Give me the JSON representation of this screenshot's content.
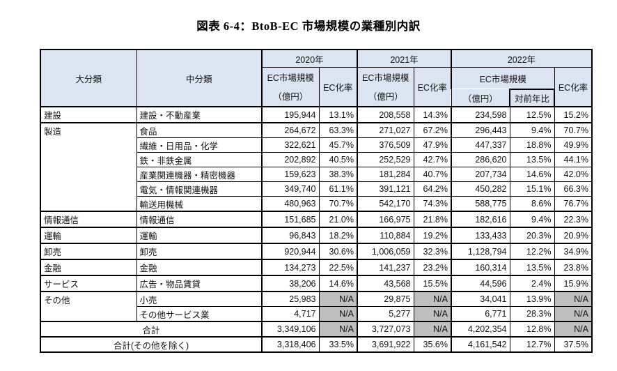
{
  "title": "図表 6-4：BtoB-EC 市場規模の業種別内訳",
  "colors": {
    "header_bg": "#dbe5f1",
    "na_bg": "#bfbfbf",
    "border": "#000000",
    "page_bg": "#ffffff"
  },
  "table": {
    "headers": {
      "major": "大分類",
      "middle": "中分類",
      "year_2020": "2020年",
      "year_2021": "2021年",
      "year_2022": "2022年",
      "ec_size": "EC市場規模",
      "unit": "（億円）",
      "ec_rate": "EC化率",
      "yoy": "対前年比"
    },
    "na_label": "N/A",
    "rows": [
      {
        "major": "建設",
        "rowspan": 1,
        "middle": "建設・不動産業",
        "v20": "195,944",
        "r20": "13.1%",
        "v21": "208,558",
        "r21": "14.3%",
        "v22": "234,598",
        "yoy": "12.5%",
        "r22": "15.2%"
      },
      {
        "major": "製造",
        "rowspan": 6,
        "middle": "食品",
        "v20": "264,672",
        "r20": "63.3%",
        "v21": "271,027",
        "r21": "67.2%",
        "v22": "296,443",
        "yoy": "9.4%",
        "r22": "70.7%"
      },
      {
        "middle": "繊維・日用品・化学",
        "v20": "322,621",
        "r20": "45.7%",
        "v21": "376,509",
        "r21": "47.9%",
        "v22": "447,337",
        "yoy": "18.8%",
        "r22": "49.9%"
      },
      {
        "middle": "鉄・非鉄金属",
        "v20": "202,892",
        "r20": "40.5%",
        "v21": "252,529",
        "r21": "42.7%",
        "v22": "286,620",
        "yoy": "13.5%",
        "r22": "44.1%"
      },
      {
        "middle": "産業関連機器・精密機器",
        "v20": "159,623",
        "r20": "38.3%",
        "v21": "181,284",
        "r21": "40.7%",
        "v22": "207,734",
        "yoy": "14.6%",
        "r22": "42.0%"
      },
      {
        "middle": "電気・情報関連機器",
        "v20": "349,740",
        "r20": "61.1%",
        "v21": "391,121",
        "r21": "64.2%",
        "v22": "450,282",
        "yoy": "15.1%",
        "r22": "66.3%"
      },
      {
        "middle": "輸送用機械",
        "v20": "480,963",
        "r20": "70.7%",
        "v21": "542,170",
        "r21": "74.3%",
        "v22": "588,775",
        "yoy": "8.6%",
        "r22": "76.7%"
      },
      {
        "major": "情報通信",
        "rowspan": 1,
        "middle": "情報通信",
        "v20": "151,685",
        "r20": "21.0%",
        "v21": "166,975",
        "r21": "21.8%",
        "v22": "182,616",
        "yoy": "9.4%",
        "r22": "22.3%"
      },
      {
        "major": "運輸",
        "rowspan": 1,
        "middle": "運輸",
        "v20": "96,843",
        "r20": "18.2%",
        "v21": "110,884",
        "r21": "19.2%",
        "v22": "133,433",
        "yoy": "20.3%",
        "r22": "20.9%"
      },
      {
        "major": "卸売",
        "rowspan": 1,
        "middle": "卸売",
        "v20": "920,944",
        "r20": "30.6%",
        "v21": "1,006,059",
        "r21": "32.3%",
        "v22": "1,128,794",
        "yoy": "12.2%",
        "r22": "34.9%"
      },
      {
        "major": "金融",
        "rowspan": 1,
        "middle": "金融",
        "v20": "134,273",
        "r20": "22.5%",
        "v21": "141,237",
        "r21": "23.2%",
        "v22": "160,314",
        "yoy": "13.5%",
        "r22": "23.8%"
      },
      {
        "major": "サービス",
        "rowspan": 1,
        "middle": "広告・物品賃貸",
        "v20": "38,206",
        "r20": "14.6%",
        "v21": "43,568",
        "r21": "15.5%",
        "v22": "44,596",
        "yoy": "2.4%",
        "r22": "15.9%"
      },
      {
        "major": "その他",
        "rowspan": 2,
        "middle": "小売",
        "v20": "25,983",
        "r20": "N/A",
        "v21": "29,875",
        "r21": "N/A",
        "v22": "34,041",
        "yoy": "13.9%",
        "r22": "N/A"
      },
      {
        "middle": "その他サービス業",
        "v20": "4,717",
        "r20": "N/A",
        "v21": "5,277",
        "r21": "N/A",
        "v22": "6,771",
        "yoy": "28.3%",
        "r22": "N/A"
      }
    ],
    "totals": [
      {
        "label": "合計",
        "v20": "3,349,106",
        "r20": "N/A",
        "v21": "3,727,073",
        "r21": "N/A",
        "v22": "4,202,354",
        "yoy": "12.8%",
        "r22": "N/A"
      },
      {
        "label": "合計(その他を除く)",
        "v20": "3,318,406",
        "r20": "33.5%",
        "v21": "3,691,922",
        "r21": "35.6%",
        "v22": "4,161,542",
        "yoy": "12.7%",
        "r22": "37.5%"
      }
    ]
  }
}
